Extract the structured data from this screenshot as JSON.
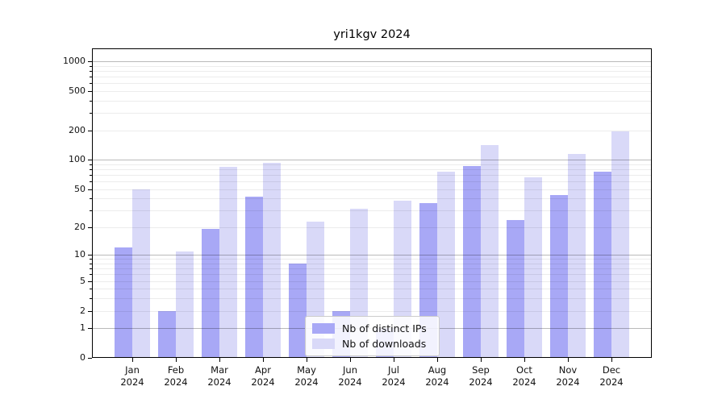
{
  "chart_data": {
    "type": "bar",
    "title": "yri1kgv 2024",
    "y_scale": "log1p",
    "ylim": [
      0,
      1350
    ],
    "y_ticks": [
      0,
      1,
      2,
      5,
      10,
      20,
      50,
      100,
      200,
      500,
      1000
    ],
    "major_gridlines": [
      1,
      10,
      100,
      1000
    ],
    "minor_gridlines": [
      2,
      3,
      4,
      5,
      6,
      7,
      8,
      9,
      20,
      30,
      40,
      50,
      60,
      70,
      80,
      90,
      200,
      300,
      400,
      500,
      600,
      700,
      800,
      900
    ],
    "grid": {
      "major_color_alpha": "rgba(0,0,0,0.27)",
      "minor_color_alpha": "rgba(0,0,0,0.075)"
    },
    "categories": [
      {
        "month": "Jan",
        "year": "2024"
      },
      {
        "month": "Feb",
        "year": "2024"
      },
      {
        "month": "Mar",
        "year": "2024"
      },
      {
        "month": "Apr",
        "year": "2024"
      },
      {
        "month": "May",
        "year": "2024"
      },
      {
        "month": "Jun",
        "year": "2024"
      },
      {
        "month": "Jul",
        "year": "2024"
      },
      {
        "month": "Aug",
        "year": "2024"
      },
      {
        "month": "Sep",
        "year": "2024"
      },
      {
        "month": "Oct",
        "year": "2024"
      },
      {
        "month": "Nov",
        "year": "2024"
      },
      {
        "month": "Dec",
        "year": "2024"
      }
    ],
    "series": [
      {
        "name": "Nb of distinct IPs",
        "color": "#a8a8f6",
        "values": [
          12,
          2,
          19,
          42,
          8,
          2,
          1,
          36,
          87,
          24,
          43,
          75
        ]
      },
      {
        "name": "Nb of downloads",
        "color": "#d9d9f8",
        "values": [
          50,
          11,
          85,
          93,
          23,
          31,
          38,
          76,
          140,
          66,
          115,
          195
        ]
      }
    ],
    "legend_position": "lower center"
  }
}
